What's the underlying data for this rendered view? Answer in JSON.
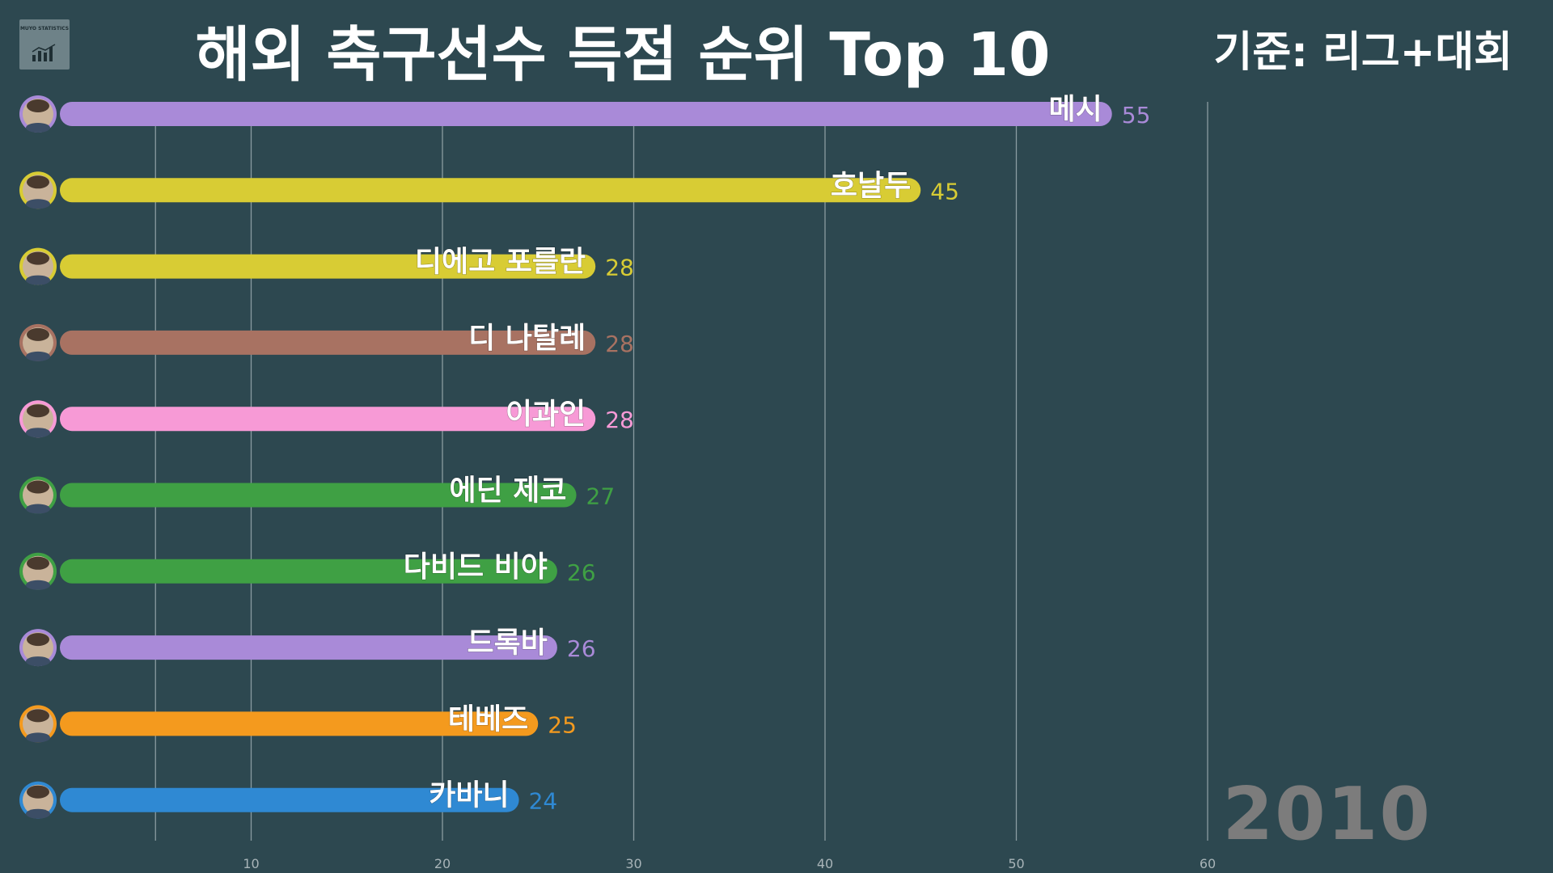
{
  "header": {
    "title": "해외 축구선수 득점 순위 Top 10",
    "basis": "기준: 리그+대회",
    "logo_text": "MUYO STATISTICS",
    "year": "2010"
  },
  "chart_data": {
    "type": "bar",
    "orientation": "horizontal",
    "title": "해외 축구선수 득점 순위 Top 10",
    "xlabel": "",
    "ylabel": "",
    "xlim": [
      0,
      60
    ],
    "x_ticks": [
      10,
      20,
      30,
      40,
      50,
      60
    ],
    "grid": true,
    "categories": [
      "메시",
      "호날두",
      "디에고 포를란",
      "디 나탈레",
      "이과인",
      "에딘 제코",
      "다비드 비야",
      "드록바",
      "테베즈",
      "카바니"
    ],
    "values": [
      55,
      45,
      28,
      28,
      28,
      27,
      26,
      26,
      25,
      24
    ],
    "colors": [
      "#a98ad8",
      "#d8cc34",
      "#d8cc34",
      "#a87262",
      "#f79ad6",
      "#3fa044",
      "#3fa044",
      "#a98ad8",
      "#f49a1e",
      "#2f89d3"
    ]
  }
}
